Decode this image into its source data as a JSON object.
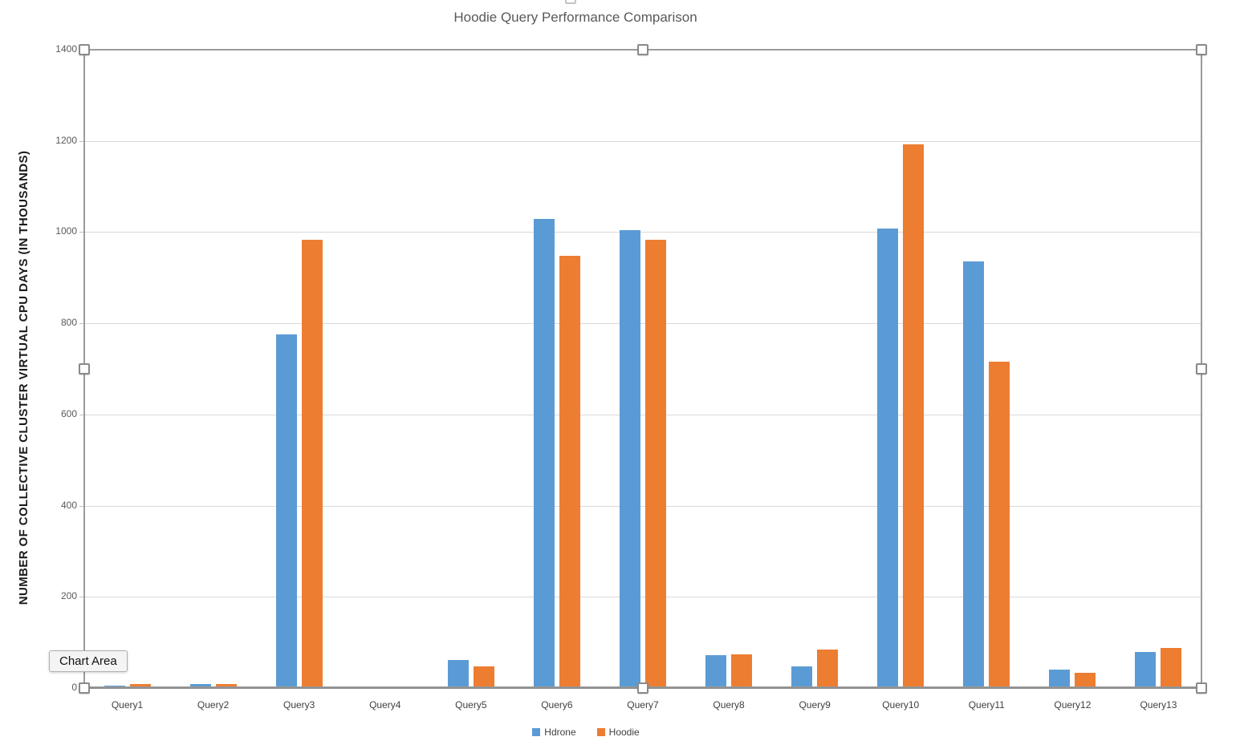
{
  "chart_data": {
    "type": "bar",
    "title": "Hoodie Query Performance Comparison",
    "ylabel": "NUMBER OF COLLECTIVE CLUSTER VIRTUAL CPU DAYS (IN THOUSANDS)",
    "xlabel": "",
    "categories": [
      "Query1",
      "Query2",
      "Query3",
      "Query4",
      "Query5",
      "Query6",
      "Query7",
      "Query8",
      "Query9",
      "Query10",
      "Query11",
      "Query12",
      "Query13"
    ],
    "series": [
      {
        "name": "Hdrone",
        "color": "#5B9BD5",
        "values": [
          5,
          9,
          776,
          4,
          61,
          1029,
          1004,
          72,
          48,
          1008,
          936,
          40,
          80
        ]
      },
      {
        "name": "Hoodie",
        "color": "#ED7D31",
        "values": [
          9,
          9,
          984,
          4,
          48,
          948,
          983,
          73,
          85,
          1193,
          715,
          33,
          88
        ]
      }
    ],
    "ylim": [
      0,
      1400
    ],
    "yticks": [
      0,
      200,
      400,
      600,
      800,
      1000,
      1200,
      1400
    ],
    "grid": true,
    "legend_position": "bottom"
  },
  "ui": {
    "tooltip": "Chart Area"
  }
}
